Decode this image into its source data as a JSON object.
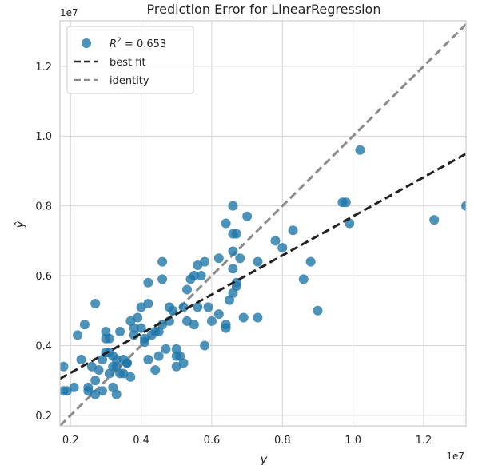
{
  "chart_data": {
    "type": "scatter",
    "title": "Prediction Error for LinearRegression",
    "xlabel": "y",
    "ylabel": "ŷ",
    "x_offset_label": "1e7",
    "y_offset_label": "1e7",
    "xlim": [
      0.17,
      1.32
    ],
    "ylim": [
      0.17,
      1.33
    ],
    "x_ticks": [
      0.2,
      0.4,
      0.6,
      0.8,
      1.0,
      1.2
    ],
    "x_tick_labels": [
      "0.2",
      "0.4",
      "0.6",
      "0.8",
      "1.0",
      "1.2"
    ],
    "y_ticks": [
      0.2,
      0.4,
      0.6,
      0.8,
      1.0,
      1.2
    ],
    "y_tick_labels": [
      "0.2",
      "0.4",
      "0.6",
      "0.8",
      "1.0",
      "1.2"
    ],
    "grid": true,
    "legend_position": "top-left",
    "legend": {
      "r2_prefix": "R",
      "r2_sup": "2",
      "r2_value": " = 0.653",
      "best_fit_label": "best fit",
      "identity_label": "identity"
    },
    "colors": {
      "points": "#1f77a8",
      "best_fit": "#222222",
      "identity": "#8c8c8c",
      "grid": "#d6d6d6"
    },
    "best_fit": {
      "slope": 0.56,
      "intercept": 0.21
    },
    "identity": {
      "slope": 1.0,
      "intercept": 0.0
    },
    "points": [
      [
        0.18,
        0.34
      ],
      [
        0.18,
        0.27
      ],
      [
        0.19,
        0.27
      ],
      [
        0.21,
        0.28
      ],
      [
        0.22,
        0.43
      ],
      [
        0.23,
        0.36
      ],
      [
        0.24,
        0.46
      ],
      [
        0.25,
        0.28
      ],
      [
        0.25,
        0.27
      ],
      [
        0.26,
        0.34
      ],
      [
        0.27,
        0.26
      ],
      [
        0.27,
        0.3
      ],
      [
        0.27,
        0.52
      ],
      [
        0.28,
        0.33
      ],
      [
        0.29,
        0.27
      ],
      [
        0.29,
        0.36
      ],
      [
        0.3,
        0.38
      ],
      [
        0.3,
        0.42
      ],
      [
        0.3,
        0.44
      ],
      [
        0.31,
        0.38
      ],
      [
        0.31,
        0.32
      ],
      [
        0.31,
        0.42
      ],
      [
        0.32,
        0.37
      ],
      [
        0.32,
        0.34
      ],
      [
        0.32,
        0.28
      ],
      [
        0.33,
        0.34
      ],
      [
        0.33,
        0.36
      ],
      [
        0.33,
        0.26
      ],
      [
        0.34,
        0.32
      ],
      [
        0.34,
        0.44
      ],
      [
        0.35,
        0.36
      ],
      [
        0.35,
        0.32
      ],
      [
        0.36,
        0.35
      ],
      [
        0.36,
        0.35
      ],
      [
        0.37,
        0.31
      ],
      [
        0.37,
        0.47
      ],
      [
        0.38,
        0.43
      ],
      [
        0.38,
        0.45
      ],
      [
        0.39,
        0.48
      ],
      [
        0.4,
        0.45
      ],
      [
        0.4,
        0.51
      ],
      [
        0.41,
        0.42
      ],
      [
        0.41,
        0.41
      ],
      [
        0.42,
        0.52
      ],
      [
        0.42,
        0.58
      ],
      [
        0.42,
        0.36
      ],
      [
        0.43,
        0.43
      ],
      [
        0.44,
        0.44
      ],
      [
        0.44,
        0.33
      ],
      [
        0.45,
        0.37
      ],
      [
        0.45,
        0.44
      ],
      [
        0.46,
        0.64
      ],
      [
        0.46,
        0.59
      ],
      [
        0.46,
        0.46
      ],
      [
        0.47,
        0.39
      ],
      [
        0.48,
        0.47
      ],
      [
        0.48,
        0.51
      ],
      [
        0.49,
        0.5
      ],
      [
        0.5,
        0.37
      ],
      [
        0.5,
        0.34
      ],
      [
        0.5,
        0.39
      ],
      [
        0.51,
        0.37
      ],
      [
        0.52,
        0.51
      ],
      [
        0.52,
        0.35
      ],
      [
        0.53,
        0.47
      ],
      [
        0.53,
        0.56
      ],
      [
        0.54,
        0.59
      ],
      [
        0.55,
        0.46
      ],
      [
        0.55,
        0.6
      ],
      [
        0.56,
        0.63
      ],
      [
        0.56,
        0.51
      ],
      [
        0.57,
        0.6
      ],
      [
        0.58,
        0.64
      ],
      [
        0.58,
        0.4
      ],
      [
        0.59,
        0.51
      ],
      [
        0.6,
        0.47
      ],
      [
        0.62,
        0.65
      ],
      [
        0.62,
        0.49
      ],
      [
        0.64,
        0.46
      ],
      [
        0.64,
        0.45
      ],
      [
        0.64,
        0.75
      ],
      [
        0.65,
        0.53
      ],
      [
        0.66,
        0.67
      ],
      [
        0.66,
        0.8
      ],
      [
        0.66,
        0.72
      ],
      [
        0.66,
        0.55
      ],
      [
        0.66,
        0.62
      ],
      [
        0.67,
        0.57
      ],
      [
        0.67,
        0.72
      ],
      [
        0.67,
        0.58
      ],
      [
        0.68,
        0.65
      ],
      [
        0.69,
        0.48
      ],
      [
        0.7,
        0.77
      ],
      [
        0.73,
        0.64
      ],
      [
        0.73,
        0.48
      ],
      [
        0.78,
        0.7
      ],
      [
        0.8,
        0.68
      ],
      [
        0.83,
        0.73
      ],
      [
        0.86,
        0.59
      ],
      [
        0.88,
        0.64
      ],
      [
        0.9,
        0.5
      ],
      [
        0.97,
        0.81
      ],
      [
        0.98,
        0.81
      ],
      [
        0.99,
        0.75
      ],
      [
        1.02,
        0.96
      ],
      [
        1.23,
        0.76
      ],
      [
        1.32,
        0.8
      ]
    ]
  }
}
